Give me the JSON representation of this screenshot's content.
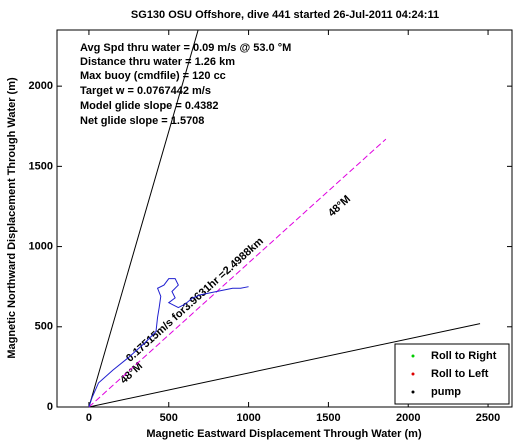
{
  "chart_data": {
    "type": "line",
    "title": "SG130 OSU Offshore, dive 441 started 26-Jul-2011 04:24:11",
    "xlabel": "Magnetic Eastward Displacement Through Water (m)",
    "ylabel": "Magnetic Northward Displacement Through Water (m)",
    "annotations": [
      "Avg Spd thru water  =  0.09 m/s @  53.0 °M",
      "Distance thru water =  1.26 km",
      "Max buoy (cmdfile) = 120 cc",
      "Target w          = 0.0767442 m/s",
      "Model glide slope   = 0.4382",
      "Net glide slope      = 1.5708",
      "48°M",
      "0.17515m/s for3.9631hr =2.4988km",
      "48°M"
    ],
    "xlim": [
      -200,
      2650
    ],
    "ylim": [
      0,
      2350
    ],
    "xticks": [
      0,
      500,
      1000,
      1500,
      2000,
      2500
    ],
    "yticks": [
      0,
      500,
      1000,
      1500,
      2000
    ],
    "grid": false,
    "legend_position": "lower right",
    "series": [
      {
        "color": "#000000",
        "style": "solid",
        "x": [
          0,
          684
        ],
        "values": [
          0,
          2350
        ]
      },
      {
        "color": "#000000",
        "style": "solid",
        "x": [
          0,
          2450
        ],
        "values": [
          0,
          520
        ]
      },
      {
        "color": "#e000e0",
        "style": "dashed",
        "x": [
          0,
          1860
        ],
        "values": [
          0,
          1670
        ]
      },
      {
        "color": "#2020d0",
        "style": "solid",
        "x": [
          0,
          20,
          60,
          150,
          250,
          350,
          420,
          430,
          440,
          450,
          430,
          470,
          500,
          540,
          560,
          520,
          540,
          500,
          560,
          600,
          650,
          700,
          750,
          800,
          850,
          900,
          950,
          1000
        ],
        "values": [
          0,
          60,
          150,
          230,
          310,
          400,
          470,
          560,
          620,
          690,
          740,
          760,
          800,
          800,
          760,
          720,
          680,
          650,
          620,
          640,
          680,
          700,
          710,
          720,
          730,
          740,
          740,
          750
        ]
      },
      {
        "name": "Roll to Right",
        "color": "#00cc00",
        "x": [],
        "values": []
      },
      {
        "name": "Roll to Left",
        "color": "#dd0000",
        "x": [],
        "values": []
      },
      {
        "name": "pump",
        "color": "#000000",
        "x": [],
        "values": []
      }
    ]
  }
}
